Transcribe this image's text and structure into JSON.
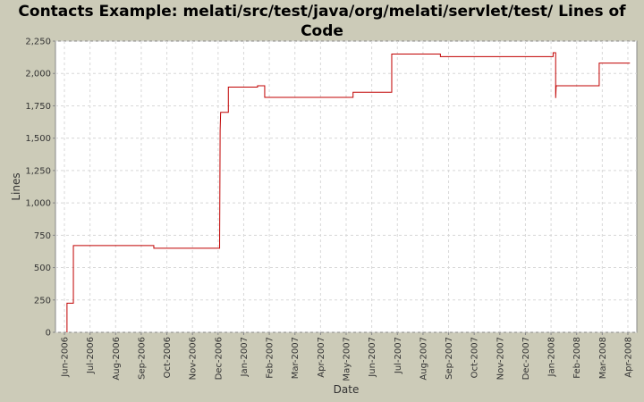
{
  "chart_data": {
    "type": "line",
    "title": "Contacts Example: melati/src/test/java/org/melati/servlet/test/ Lines of Code",
    "x_label": "Date",
    "y_label": "Lines",
    "grid": true,
    "series": [
      {
        "name": "Lines",
        "color": "#c00000",
        "x": [
          0.1,
          0.1,
          0.35,
          0.35,
          3.49,
          3.49,
          6.06,
          6.06,
          6.08,
          6.1,
          6.4,
          6.4,
          7.54,
          7.54,
          7.82,
          7.82,
          11.27,
          11.27,
          12.78,
          12.78,
          14.68,
          14.68,
          19.08,
          19.08,
          19.18,
          19.18,
          19.2,
          20.88,
          20.88,
          22.08
        ],
        "values": [
          0,
          225,
          225,
          670,
          670,
          650,
          650,
          700,
          1560,
          1700,
          1700,
          1895,
          1895,
          1905,
          1905,
          1815,
          1815,
          1855,
          1855,
          2150,
          2150,
          2130,
          2130,
          2160,
          2160,
          1810,
          1905,
          1905,
          2080,
          2080
        ]
      }
    ],
    "xlim": [
      -0.35,
      22.35
    ],
    "xticks": [
      {
        "value": 0,
        "label": "Jun-2006"
      },
      {
        "value": 1,
        "label": "Jul-2006"
      },
      {
        "value": 2,
        "label": "Aug-2006"
      },
      {
        "value": 3,
        "label": "Sep-2006"
      },
      {
        "value": 4,
        "label": "Oct-2006"
      },
      {
        "value": 5,
        "label": "Nov-2006"
      },
      {
        "value": 6,
        "label": "Dec-2006"
      },
      {
        "value": 7,
        "label": "Jan-2007"
      },
      {
        "value": 8,
        "label": "Feb-2007"
      },
      {
        "value": 9,
        "label": "Mar-2007"
      },
      {
        "value": 10,
        "label": "Apr-2007"
      },
      {
        "value": 11,
        "label": "May-2007"
      },
      {
        "value": 12,
        "label": "Jun-2007"
      },
      {
        "value": 13,
        "label": "Jul-2007"
      },
      {
        "value": 14,
        "label": "Aug-2007"
      },
      {
        "value": 15,
        "label": "Sep-2007"
      },
      {
        "value": 16,
        "label": "Oct-2007"
      },
      {
        "value": 17,
        "label": "Nov-2007"
      },
      {
        "value": 18,
        "label": "Dec-2007"
      },
      {
        "value": 19,
        "label": "Jan-2008"
      },
      {
        "value": 20,
        "label": "Feb-2008"
      },
      {
        "value": 21,
        "label": "Mar-2008"
      },
      {
        "value": 22,
        "label": "Apr-2008"
      }
    ],
    "ylim": [
      0,
      2250
    ],
    "yticks": [
      0,
      250,
      500,
      750,
      {
        "value": 1000,
        "label": "1,000"
      },
      {
        "value": 1250,
        "label": "1,250"
      },
      {
        "value": 1500,
        "label": "1,500"
      },
      {
        "value": 1750,
        "label": "1,750"
      },
      {
        "value": 2000,
        "label": "2,000"
      },
      {
        "value": 2250,
        "label": "2,250"
      }
    ]
  }
}
